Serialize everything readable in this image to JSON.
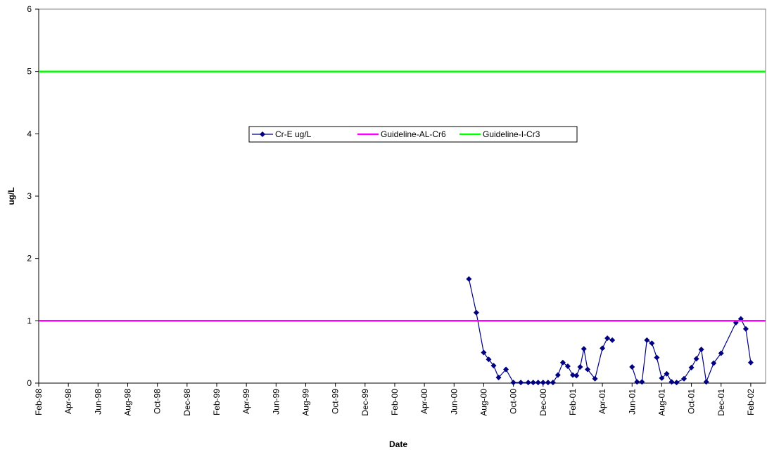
{
  "chart_data": {
    "type": "line",
    "x_label": "Date",
    "y_label": "ug/L",
    "xlim": [
      "1998-02",
      "2002-03"
    ],
    "xticks": [
      {
        "value": "1998-02",
        "label": "Feb-98"
      },
      {
        "value": "1998-04",
        "label": "Apr-98"
      },
      {
        "value": "1998-06",
        "label": "Jun-98"
      },
      {
        "value": "1998-08",
        "label": "Aug-98"
      },
      {
        "value": "1998-10",
        "label": "Oct-98"
      },
      {
        "value": "1998-12",
        "label": "Dec-98"
      },
      {
        "value": "1999-02",
        "label": "Feb-99"
      },
      {
        "value": "1999-04",
        "label": "Apr-99"
      },
      {
        "value": "1999-06",
        "label": "Jun-99"
      },
      {
        "value": "1999-08",
        "label": "Aug-99"
      },
      {
        "value": "1999-10",
        "label": "Oct-99"
      },
      {
        "value": "1999-12",
        "label": "Dec-99"
      },
      {
        "value": "2000-02",
        "label": "Feb-00"
      },
      {
        "value": "2000-04",
        "label": "Apr-00"
      },
      {
        "value": "2000-06",
        "label": "Jun-00"
      },
      {
        "value": "2000-08",
        "label": "Aug-00"
      },
      {
        "value": "2000-10",
        "label": "Oct-00"
      },
      {
        "value": "2000-12",
        "label": "Dec-00"
      },
      {
        "value": "2001-02",
        "label": "Feb-01"
      },
      {
        "value": "2001-04",
        "label": "Apr-01"
      },
      {
        "value": "2001-06",
        "label": "Jun-01"
      },
      {
        "value": "2001-08",
        "label": "Aug-01"
      },
      {
        "value": "2001-10",
        "label": "Oct-01"
      },
      {
        "value": "2001-12",
        "label": "Dec-01"
      },
      {
        "value": "2002-02",
        "label": "Feb-02"
      }
    ],
    "ylim": [
      0,
      6
    ],
    "yticks": [
      0,
      1,
      2,
      3,
      4,
      5,
      6
    ],
    "series": [
      {
        "name": "Cr-E ug/L",
        "color": "#000080",
        "marker": "diamond",
        "x": [
          "2000-07",
          "2000-07",
          "2000-08",
          "2000-08",
          "2000-08",
          "2000-09",
          "2000-09",
          "2000-10",
          "2000-10",
          "2000-11",
          "2000-11",
          "2000-11",
          "2000-12",
          "2000-12",
          "2000-12",
          "2001-01",
          "2001-01",
          "2001-01",
          "2001-02",
          "2001-02",
          "2001-02",
          "2001-02",
          "2001-03",
          "2001-03",
          "2001-04",
          "2001-04",
          "2001-04",
          "2001-05",
          "2001-06",
          "2001-06",
          "2001-06",
          "2001-07",
          "2001-07",
          "2001-07",
          "2001-08",
          "2001-08",
          "2001-08",
          "2001-09",
          "2001-09",
          "2001-10",
          "2001-10",
          "2001-10",
          "2001-11",
          "2001-11",
          "2001-12",
          "2002-01",
          "2002-01",
          "2002-01",
          "2002-02"
        ],
        "values": [
          1.67,
          1.13,
          0.49,
          0.38,
          0.28,
          0.09,
          0.22,
          0.01,
          0.01,
          0.01,
          0.01,
          0.01,
          0.01,
          0.01,
          0.01,
          0.13,
          0.33,
          0.27,
          0.13,
          0.12,
          0.26,
          0.55,
          0.22,
          0.07,
          0.56,
          0.72,
          0.69,
          null,
          0.26,
          0.02,
          0.02,
          0.69,
          0.64,
          0.41,
          0.08,
          0.15,
          0.02,
          0.01,
          0.07,
          0.25,
          0.39,
          0.54,
          0.02,
          0.32,
          0.48,
          0.97,
          1.03,
          0.87,
          0.33
        ]
      },
      {
        "name": "Guideline-AL-Cr6",
        "color": "#ff00ff",
        "x": [
          "1998-02",
          "2002-03"
        ],
        "values": [
          1,
          1
        ]
      },
      {
        "name": "Guideline-I-Cr3",
        "color": "#00ff00",
        "x": [
          "1998-02",
          "2002-03"
        ],
        "values": [
          5,
          5
        ]
      }
    ]
  }
}
